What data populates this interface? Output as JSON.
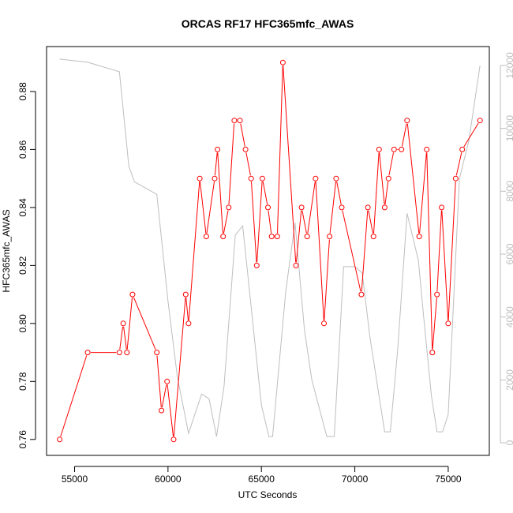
{
  "chart_data": {
    "type": "line",
    "title": "ORCAS RF17 HFC365mfc_AWAS",
    "xlabel": "UTC Seconds",
    "ylabel": "HFC365mfc_AWAS",
    "y2label": "",
    "xlim": [
      53500,
      77200
    ],
    "ylim": [
      0.7545,
      0.8955
    ],
    "y2lim": [
      -400,
      12600
    ],
    "x_ticks": [
      55000,
      60000,
      65000,
      70000,
      75000
    ],
    "y_ticks": [
      0.76,
      0.78,
      0.8,
      0.82,
      0.84,
      0.86,
      0.88
    ],
    "y2_ticks": [
      0,
      2000,
      4000,
      6000,
      8000,
      10000,
      12000
    ],
    "colors": {
      "primary": "#ff0000",
      "secondary": "#bebebe",
      "axis": "#000000",
      "y2_axis": "#bebebe"
    },
    "series": [
      {
        "axis": "left",
        "style": "line-with-open-circles",
        "points": [
          [
            54200,
            0.76
          ],
          [
            55700,
            0.79
          ],
          [
            57400,
            0.79
          ],
          [
            57600,
            0.8
          ],
          [
            57800,
            0.79
          ],
          [
            58100,
            0.81
          ],
          [
            59400,
            0.79
          ],
          [
            59650,
            0.77
          ],
          [
            59950,
            0.78
          ],
          [
            60300,
            0.76
          ],
          [
            60950,
            0.81
          ],
          [
            61100,
            0.8
          ],
          [
            61700,
            0.85
          ],
          [
            62050,
            0.83
          ],
          [
            62500,
            0.85
          ],
          [
            62650,
            0.86
          ],
          [
            62950,
            0.83
          ],
          [
            63250,
            0.84
          ],
          [
            63550,
            0.87
          ],
          [
            63850,
            0.87
          ],
          [
            64150,
            0.86
          ],
          [
            64450,
            0.85
          ],
          [
            64750,
            0.82
          ],
          [
            65050,
            0.85
          ],
          [
            65350,
            0.84
          ],
          [
            65550,
            0.83
          ],
          [
            65850,
            0.83
          ],
          [
            66150,
            0.89
          ],
          [
            66850,
            0.82
          ],
          [
            67150,
            0.84
          ],
          [
            67450,
            0.83
          ],
          [
            67900,
            0.85
          ],
          [
            68350,
            0.8
          ],
          [
            68650,
            0.83
          ],
          [
            69000,
            0.85
          ],
          [
            69300,
            0.84
          ],
          [
            70350,
            0.81
          ],
          [
            70700,
            0.84
          ],
          [
            71000,
            0.83
          ],
          [
            71300,
            0.86
          ],
          [
            71600,
            0.84
          ],
          [
            71800,
            0.85
          ],
          [
            72100,
            0.86
          ],
          [
            72500,
            0.86
          ],
          [
            72800,
            0.87
          ],
          [
            73450,
            0.83
          ],
          [
            73850,
            0.86
          ],
          [
            74150,
            0.79
          ],
          [
            74400,
            0.81
          ],
          [
            74650,
            0.84
          ],
          [
            75000,
            0.8
          ],
          [
            75400,
            0.85
          ],
          [
            75750,
            0.86
          ],
          [
            76700,
            0.87
          ]
        ]
      },
      {
        "axis": "right",
        "style": "line",
        "points": [
          [
            54200,
            12200
          ],
          [
            55700,
            12100
          ],
          [
            57400,
            11800
          ],
          [
            57900,
            8800
          ],
          [
            58200,
            8300
          ],
          [
            59400,
            7900
          ],
          [
            60000,
            4500
          ],
          [
            60500,
            2100
          ],
          [
            61100,
            300
          ],
          [
            61800,
            1550
          ],
          [
            62200,
            1400
          ],
          [
            62600,
            200
          ],
          [
            63000,
            1800
          ],
          [
            63600,
            6600
          ],
          [
            64000,
            6900
          ],
          [
            65000,
            1200
          ],
          [
            65400,
            200
          ],
          [
            65600,
            200
          ],
          [
            66300,
            4800
          ],
          [
            66800,
            7000
          ],
          [
            67300,
            3600
          ],
          [
            67700,
            2000
          ],
          [
            68500,
            200
          ],
          [
            68900,
            200
          ],
          [
            69400,
            5600
          ],
          [
            70000,
            5600
          ],
          [
            70400,
            5400
          ],
          [
            70800,
            3400
          ],
          [
            71400,
            1100
          ],
          [
            71600,
            350
          ],
          [
            71900,
            350
          ],
          [
            72300,
            3000
          ],
          [
            72800,
            7300
          ],
          [
            73400,
            5800
          ],
          [
            73700,
            3900
          ],
          [
            74100,
            1500
          ],
          [
            74400,
            350
          ],
          [
            74700,
            350
          ],
          [
            75000,
            900
          ],
          [
            75600,
            8400
          ],
          [
            76100,
            9600
          ],
          [
            76700,
            12000
          ]
        ]
      }
    ]
  }
}
